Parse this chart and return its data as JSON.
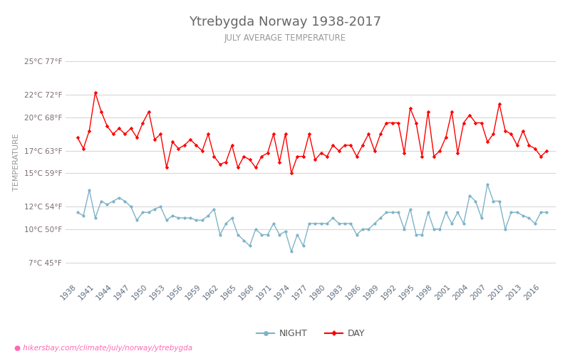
{
  "title": "Ytrebygda Norway 1938-2017",
  "subtitle": "JULY AVERAGE TEMPERATURE",
  "ylabel": "TEMPERATURE",
  "footer": "hikersbay.com/climate/july/norway/ytrebygda",
  "background_color": "#ffffff",
  "grid_color": "#d8d8d8",
  "years": [
    1938,
    1939,
    1940,
    1941,
    1942,
    1943,
    1944,
    1945,
    1946,
    1947,
    1948,
    1949,
    1950,
    1951,
    1952,
    1953,
    1954,
    1955,
    1956,
    1957,
    1958,
    1959,
    1960,
    1961,
    1962,
    1963,
    1964,
    1965,
    1966,
    1967,
    1968,
    1969,
    1970,
    1971,
    1972,
    1973,
    1974,
    1975,
    1976,
    1977,
    1978,
    1979,
    1980,
    1981,
    1982,
    1983,
    1984,
    1985,
    1986,
    1987,
    1988,
    1989,
    1990,
    1991,
    1992,
    1993,
    1994,
    1995,
    1996,
    1997,
    1998,
    1999,
    2000,
    2001,
    2002,
    2003,
    2004,
    2005,
    2006,
    2007,
    2008,
    2009,
    2010,
    2011,
    2012,
    2013,
    2014,
    2015,
    2016,
    2017
  ],
  "day_temps": [
    18.2,
    17.2,
    18.8,
    22.2,
    20.5,
    19.2,
    18.5,
    19.0,
    18.5,
    19.0,
    18.2,
    19.5,
    20.5,
    18.0,
    18.5,
    15.5,
    17.8,
    17.2,
    17.5,
    18.0,
    17.5,
    17.0,
    18.5,
    16.5,
    15.8,
    16.0,
    17.5,
    15.5,
    16.5,
    16.2,
    15.5,
    16.5,
    16.8,
    18.5,
    16.0,
    18.5,
    15.0,
    16.5,
    16.5,
    18.5,
    16.2,
    16.8,
    16.5,
    17.5,
    17.0,
    17.5,
    17.5,
    16.5,
    17.5,
    18.5,
    17.0,
    18.5,
    19.5,
    19.5,
    19.5,
    16.8,
    20.8,
    19.5,
    16.5,
    20.5,
    16.5,
    17.0,
    18.2,
    20.5,
    16.8,
    19.5,
    20.2,
    19.5,
    19.5,
    17.8,
    18.5,
    21.2,
    18.8,
    18.5,
    17.5,
    18.8,
    17.5,
    17.2,
    16.5,
    17.0
  ],
  "night_temps": [
    11.5,
    11.2,
    13.5,
    11.0,
    12.5,
    12.2,
    12.5,
    12.8,
    12.5,
    12.0,
    10.8,
    11.5,
    11.5,
    11.8,
    12.0,
    10.8,
    11.2,
    11.0,
    11.0,
    11.0,
    10.8,
    10.8,
    11.2,
    11.8,
    9.5,
    10.5,
    11.0,
    9.5,
    9.0,
    8.5,
    10.0,
    9.5,
    9.5,
    10.5,
    9.5,
    9.8,
    8.0,
    9.5,
    8.5,
    10.5,
    10.5,
    10.5,
    10.5,
    11.0,
    10.5,
    10.5,
    10.5,
    9.5,
    10.0,
    10.0,
    10.5,
    11.0,
    11.5,
    11.5,
    11.5,
    10.0,
    11.8,
    9.5,
    9.5,
    11.5,
    10.0,
    10.0,
    11.5,
    10.5,
    11.5,
    10.5,
    13.0,
    12.5,
    11.0,
    14.0,
    12.5,
    12.5,
    10.0,
    11.5,
    11.5,
    11.2,
    11.0,
    10.5,
    11.5,
    11.5
  ],
  "day_color": "#ff0000",
  "night_color": "#7fb3c8",
  "yticks_c": [
    7,
    10,
    12,
    15,
    17,
    20,
    22,
    25
  ],
  "yticks_f": [
    45,
    50,
    54,
    59,
    63,
    68,
    72,
    77
  ],
  "ylim": [
    5.5,
    26.5
  ],
  "xtick_years": [
    1938,
    1941,
    1944,
    1947,
    1950,
    1953,
    1956,
    1959,
    1962,
    1965,
    1968,
    1971,
    1974,
    1977,
    1980,
    1983,
    1986,
    1989,
    1992,
    1995,
    1998,
    2001,
    2004,
    2007,
    2010,
    2013,
    2016
  ],
  "title_color": "#666666",
  "subtitle_color": "#999999",
  "ylabel_color": "#999999",
  "tick_color": "#7a6b6b",
  "legend_text_color": "#555555"
}
